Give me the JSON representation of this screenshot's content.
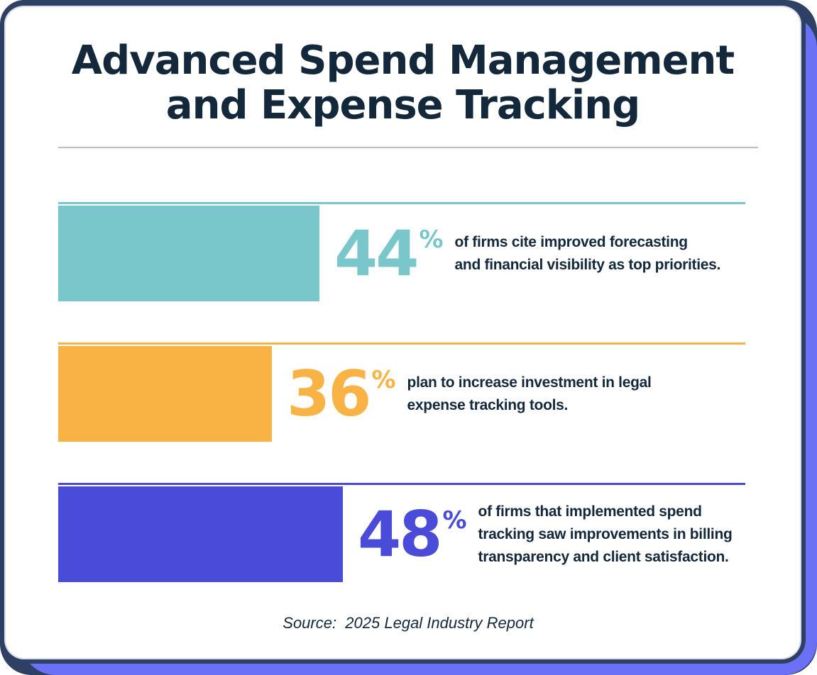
{
  "header": {
    "title_line1": "Advanced Spend Management",
    "title_line2": "and Expense Tracking"
  },
  "footer": {
    "source": "Source:  2025 Legal Industry Report"
  },
  "colors": {
    "navy": "#2E4063",
    "periwinkle": "#6B70F7",
    "text_dark": "#14283C",
    "divider": "#BDBDBD",
    "card_bg": "#FFFFFF",
    "teal": "#7AC7CB",
    "orange": "#F9B344",
    "blue": "#4A4CD9"
  },
  "stats": [
    {
      "value": "44",
      "unit": "%",
      "percent": 44,
      "color": "#7AC7CB",
      "lines": [
        "of firms cite improved forecasting",
        "and financial visibility as top priorities."
      ]
    },
    {
      "value": "36",
      "unit": "%",
      "percent": 36,
      "color": "#F9B344",
      "lines": [
        "plan to increase investment in legal",
        "expense tracking tools."
      ]
    },
    {
      "value": "48",
      "unit": "%",
      "percent": 48,
      "color": "#4A4CD9",
      "lines": [
        "of firms that implemented spend",
        "tracking saw improvements in billing",
        "transparency and client satisfaction."
      ]
    }
  ],
  "chart_data": {
    "type": "bar",
    "orientation": "horizontal",
    "title": "Advanced Spend Management and Expense Tracking",
    "categories": [
      "of firms cite improved forecasting and financial visibility as top priorities.",
      "plan to increase investment in legal expense tracking tools.",
      "of firms that implemented spend tracking saw improvements in billing transparency and client satisfaction."
    ],
    "values": [
      44,
      36,
      48
    ],
    "unit": "%",
    "xlim": [
      0,
      100
    ],
    "bar_colors": [
      "#7AC7CB",
      "#F9B344",
      "#4A4CD9"
    ],
    "grid": false,
    "legend": false,
    "source": "Source:  2025 Legal Industry Report"
  }
}
